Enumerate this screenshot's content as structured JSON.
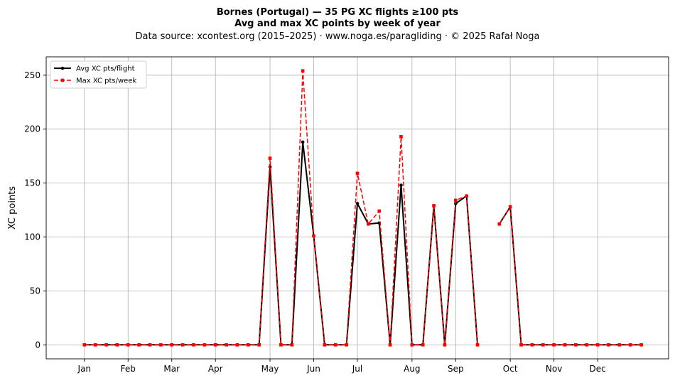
{
  "header": {
    "title": "Bornes (Portugal)  —  35 PG XC flights ≥100 pts",
    "subtitle": "Avg and max XC points by week of year",
    "source": "Data source: xcontest.org (2015–2025)  ·  www.noga.es/paragliding  ·  © 2025 Rafał Noga"
  },
  "chart_data": {
    "type": "line",
    "title": "Bornes (Portugal)  —  35 PG XC flights ≥100 pts",
    "subtitle": "Avg and max XC points by week of year",
    "xlabel": "",
    "ylabel": "XC points",
    "xlim": [
      -2.5,
      54.5
    ],
    "ylim": [
      -13,
      267
    ],
    "y_ticks": [
      0,
      50,
      100,
      150,
      200,
      250
    ],
    "x_ticks": [
      {
        "label": "Jan",
        "x": 1
      },
      {
        "label": "Feb",
        "x": 5
      },
      {
        "label": "Mar",
        "x": 9
      },
      {
        "label": "Apr",
        "x": 13
      },
      {
        "label": "May",
        "x": 18
      },
      {
        "label": "Jun",
        "x": 22
      },
      {
        "label": "Jul",
        "x": 26
      },
      {
        "label": "Aug",
        "x": 31
      },
      {
        "label": "Sep",
        "x": 35
      },
      {
        "label": "Oct",
        "x": 40
      },
      {
        "label": "Nov",
        "x": 44
      },
      {
        "label": "Dec",
        "x": 48
      }
    ],
    "grid": true,
    "legend_position": "top-left",
    "x": [
      1,
      2,
      3,
      4,
      5,
      6,
      7,
      8,
      9,
      10,
      11,
      12,
      13,
      14,
      15,
      16,
      17,
      18,
      19,
      20,
      21,
      22,
      23,
      24,
      25,
      26,
      27,
      28,
      29,
      30,
      31,
      32,
      33,
      34,
      35,
      36,
      37,
      38,
      39,
      40,
      41,
      42,
      43,
      44,
      45,
      46,
      47,
      48,
      49,
      50,
      51,
      52
    ],
    "series": [
      {
        "name": "Avg XC pts/flight",
        "color": "#000000",
        "style": "solid",
        "marker": "circle",
        "values": [
          0,
          0,
          0,
          0,
          0,
          0,
          0,
          0,
          0,
          0,
          0,
          0,
          0,
          0,
          0,
          0,
          0,
          165,
          0,
          0,
          188,
          101,
          0,
          0,
          0,
          131,
          112,
          113,
          0,
          148,
          0,
          0,
          129,
          0,
          131,
          138,
          0,
          null,
          112,
          128,
          0,
          0,
          0,
          0,
          0,
          0,
          0,
          0,
          0,
          0,
          0,
          0
        ]
      },
      {
        "name": "Max XC pts/week",
        "color": "#ff0000",
        "style": "dashed",
        "marker": "square",
        "values": [
          0,
          0,
          0,
          0,
          0,
          0,
          0,
          0,
          0,
          0,
          0,
          0,
          0,
          0,
          0,
          0,
          0,
          173,
          0,
          0,
          254,
          101,
          0,
          0,
          0,
          159,
          112,
          124,
          0,
          193,
          0,
          0,
          129,
          0,
          134,
          138,
          0,
          null,
          112,
          128,
          0,
          0,
          0,
          0,
          0,
          0,
          0,
          0,
          0,
          0,
          0,
          0
        ]
      }
    ]
  }
}
